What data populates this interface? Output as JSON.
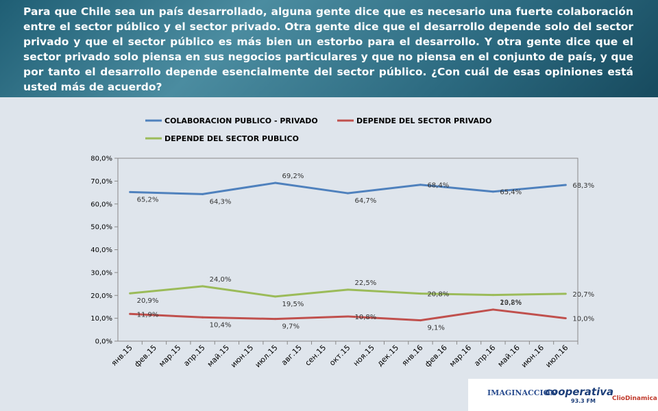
{
  "header": {
    "question": "Para que Chile sea un país desarrollado, alguna gente dice que es necesario una fuerte colaboración entre el sector público y el sector privado. Otra gente dice que el desarrollo depende solo del sector privado y que el sector público es más bien un estorbo para el desarrollo. Y otra gente dice que el sector privado solo piensa en sus negocios particulares y que no piensa en el conjunto de país, y que por tanto el desarrollo depende esencialmente del sector público. ¿Con cuál de esas opiniones está usted más de acuerdo?"
  },
  "chart_data": {
    "type": "line",
    "categories": [
      "янв.15",
      "фев.15",
      "мар.15",
      "апр.15",
      "май.15",
      "июн.15",
      "июл.15",
      "авг.15",
      "сен.15",
      "окт.15",
      "ноя.15",
      "дек.15",
      "янв.16",
      "фев.16",
      "мар.16",
      "апр.16",
      "май.16",
      "июн.16",
      "июл.16"
    ],
    "series": [
      {
        "name": "COLABORACION PUBLICO - PRIVADO",
        "color": "#4f81bd",
        "values": [
          65.2,
          null,
          null,
          64.3,
          null,
          null,
          69.2,
          null,
          null,
          64.7,
          null,
          null,
          68.4,
          null,
          null,
          65.4,
          null,
          null,
          68.3
        ],
        "value_labels": [
          "65,2%",
          null,
          null,
          "64,3%",
          null,
          null,
          "69,2%",
          null,
          null,
          "64,7%",
          null,
          null,
          "68,4%",
          null,
          null,
          "65,4%",
          null,
          null,
          "68,3%"
        ]
      },
      {
        "name": "DEPENDE DEL SECTOR PRIVADO",
        "color": "#c0504d",
        "values": [
          11.9,
          null,
          null,
          10.4,
          null,
          null,
          9.7,
          null,
          null,
          10.8,
          null,
          null,
          9.1,
          null,
          null,
          13.8,
          null,
          null,
          10.0
        ],
        "value_labels": [
          "11,9%",
          null,
          null,
          "10,4%",
          null,
          null,
          "9,7%",
          null,
          null,
          "10,8%",
          null,
          null,
          "9,1%",
          null,
          null,
          "13,8%",
          null,
          null,
          "10,0%"
        ]
      },
      {
        "name": "DEPENDE DEL SECTOR PUBLICO",
        "color": "#9bbb59",
        "values": [
          20.9,
          null,
          null,
          24.0,
          null,
          null,
          19.5,
          null,
          null,
          22.5,
          null,
          null,
          20.8,
          null,
          null,
          20.2,
          null,
          null,
          20.7
        ],
        "value_labels": [
          "20,9%",
          null,
          null,
          "24,0%",
          null,
          null,
          "19,5%",
          null,
          null,
          "22,5%",
          null,
          null,
          "20,8%",
          null,
          null,
          "20,2%",
          null,
          null,
          "20,7%"
        ]
      }
    ],
    "ylim": [
      0,
      80
    ],
    "yticks": [
      {
        "value": 0,
        "label": "0,0%"
      },
      {
        "value": 10,
        "label": "10,0%"
      },
      {
        "value": 20,
        "label": "20,0%"
      },
      {
        "value": 30,
        "label": "30,0%"
      },
      {
        "value": 40,
        "label": "40,0%"
      },
      {
        "value": 50,
        "label": "50,0%"
      },
      {
        "value": 60,
        "label": "60,0%"
      },
      {
        "value": 70,
        "label": "70,0%"
      },
      {
        "value": 80,
        "label": "80,0%"
      }
    ],
    "legend": "top"
  },
  "footer": {
    "logos": [
      "IMAGINACCION",
      "cooperativa",
      "93.3 FM",
      "ClioDinamica"
    ]
  }
}
